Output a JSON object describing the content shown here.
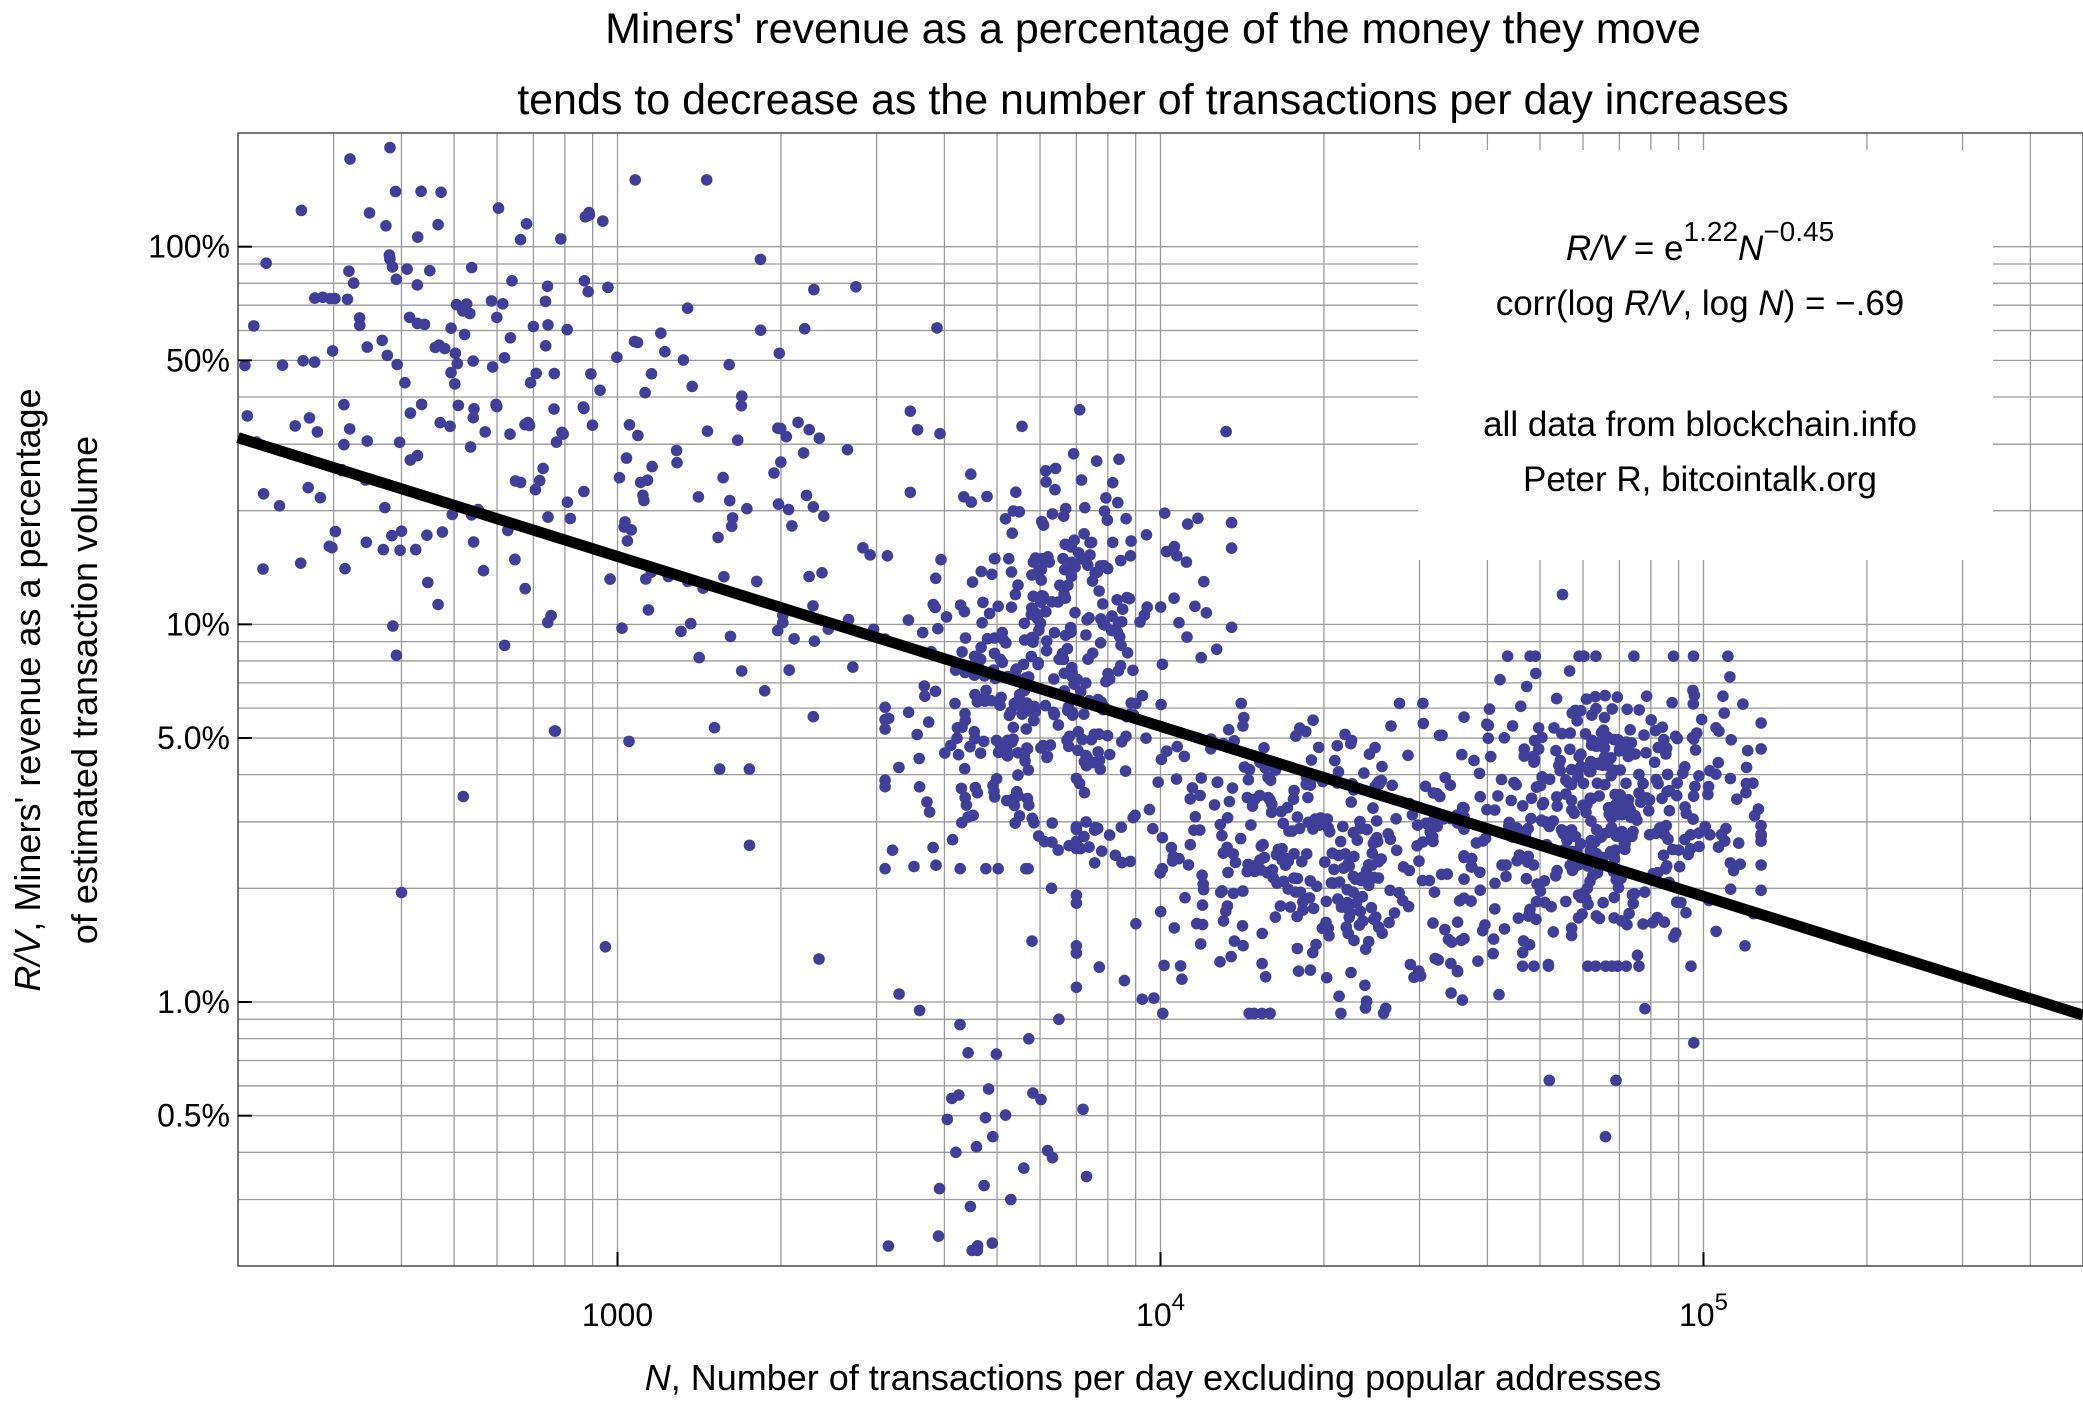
{
  "chart_data": {
    "type": "scatter",
    "title_lines": [
      "Miners' revenue as a percentage of the money they move",
      "tends to decrease as the number of transactions per day increases"
    ],
    "xlabel_var": "N",
    "xlabel_rest": ", Number of transactions per day excluding popular addresses",
    "ylabel_line1_var": "R/V",
    "ylabel_line1_rest": ", Miners' revenue as a percentage",
    "ylabel_line2": "of estimated transaction volume",
    "x_scale": "log",
    "y_scale": "log",
    "xlim": [
      200,
      500000
    ],
    "ylim_percent": [
      0.2,
      200
    ],
    "x_ticks": [
      {
        "value": 1000,
        "label": "1000"
      },
      {
        "value": 10000,
        "label": "10",
        "sup": "4"
      },
      {
        "value": 100000,
        "label": "10",
        "sup": "5"
      }
    ],
    "y_ticks": [
      {
        "value": 100,
        "label": "100%"
      },
      {
        "value": 50,
        "label": "50%"
      },
      {
        "value": 10,
        "label": "10%"
      },
      {
        "value": 5,
        "label": "5.0%"
      },
      {
        "value": 1,
        "label": "1.0%"
      },
      {
        "value": 0.5,
        "label": "0.5%"
      }
    ],
    "grid": true,
    "marker_color": "#3f3f99",
    "fit_line_color": "#000000",
    "fit_line": {
      "ln_a": 1.22,
      "b": -0.45,
      "x_start": 200,
      "x_end": 500000
    },
    "annotation": {
      "formula": {
        "lhs": "R/V",
        "eq": " = e",
        "exp1": "1.22",
        "var": "N",
        "exp2": "−0.45"
      },
      "corr": {
        "prefix": "corr(log ",
        "v1": "R/V",
        "mid": ", log ",
        "v2": "N",
        "suffix": ") = −.69"
      },
      "source_line": "all data from blockchain.info",
      "author_line": "Peter R, bitcointalk.org",
      "position": "top-right"
    },
    "clusters": [
      {
        "cx": 450,
        "cy": 40,
        "sx": 0.45,
        "sy": 0.75,
        "n": 160
      },
      {
        "cx": 1100,
        "cy": 28,
        "sx": 0.35,
        "sy": 0.8,
        "n": 55
      },
      {
        "cx": 2100,
        "cy": 18,
        "sx": 0.3,
        "sy": 0.7,
        "n": 60
      },
      {
        "cx": 5600,
        "cy": 5.8,
        "sx": 0.28,
        "sy": 0.45,
        "n": 260
      },
      {
        "cx": 7200,
        "cy": 13,
        "sx": 0.3,
        "sy": 0.45,
        "n": 130
      },
      {
        "cx": 20000,
        "cy": 2.4,
        "sx": 0.5,
        "sy": 0.45,
        "n": 420
      },
      {
        "cx": 68000,
        "cy": 3.2,
        "sx": 0.3,
        "sy": 0.45,
        "n": 380
      },
      {
        "cx": 4800,
        "cy": 0.45,
        "sx": 0.2,
        "sy": 0.45,
        "n": 25
      }
    ],
    "points": [
      [
        390,
        140
      ],
      [
        680,
        115
      ],
      [
        960,
        78
      ],
      [
        2300,
        77
      ],
      [
        380,
        95
      ],
      [
        7100,
        37
      ],
      [
        3900,
        0.24
      ],
      [
        4500,
        0.22
      ],
      [
        5800,
        1.45
      ],
      [
        2350,
        1.3
      ],
      [
        400,
        1.95
      ],
      [
        950,
        1.4
      ],
      [
        520,
        3.5
      ],
      [
        1750,
        2.6
      ],
      [
        1050,
        4.9
      ],
      [
        55000,
        12
      ],
      [
        52000,
        0.62
      ],
      [
        66000,
        0.44
      ],
      [
        69000,
        0.62
      ],
      [
        78000,
        0.96
      ],
      [
        96000,
        0.78
      ],
      [
        3300,
        1.05
      ],
      [
        3600,
        0.95
      ],
      [
        6500,
        0.9
      ],
      [
        7200,
        0.52
      ],
      [
        4200,
        0.4
      ],
      [
        5300,
        0.3
      ],
      [
        4600,
        0.22
      ],
      [
        4900,
        0.23
      ],
      [
        6300,
        2.0
      ]
    ]
  }
}
